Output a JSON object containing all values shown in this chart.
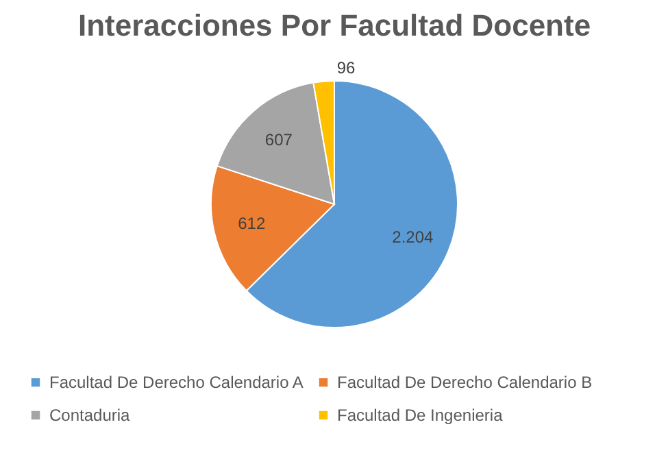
{
  "chart_data": {
    "type": "pie",
    "title": "Interacciones Por Facultad Docente",
    "categories": [
      "Facultad De Derecho Calendario A",
      "Facultad De Derecho Calendario B",
      "Contaduria",
      "Facultad De Ingenieria"
    ],
    "values": [
      2204,
      612,
      607,
      96
    ],
    "value_labels": [
      "2.204",
      "612",
      "607",
      "96"
    ],
    "colors": [
      "#5b9bd5",
      "#ed7d31",
      "#a5a5a5",
      "#ffc000"
    ],
    "legend": "bottom"
  }
}
